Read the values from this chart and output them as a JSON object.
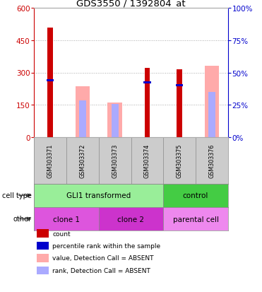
{
  "title": "GDS3550 / 1392804_at",
  "samples": [
    "GSM303371",
    "GSM303372",
    "GSM303373",
    "GSM303374",
    "GSM303375",
    "GSM303376"
  ],
  "red_counts": [
    510,
    0,
    0,
    320,
    315,
    0
  ],
  "pink_values": [
    0,
    235,
    160,
    0,
    0,
    330
  ],
  "light_blue_ranks": [
    0,
    170,
    155,
    0,
    0,
    210
  ],
  "blue_percentile": [
    265,
    0,
    0,
    255,
    240,
    0
  ],
  "ylim_left": [
    0,
    600
  ],
  "ylim_right": [
    0,
    100
  ],
  "yticks_left": [
    0,
    150,
    300,
    450,
    600
  ],
  "yticks_right": [
    0,
    25,
    50,
    75,
    100
  ],
  "left_axis_color": "#cc0000",
  "right_axis_color": "#0000cc",
  "cell_type_groups": [
    {
      "label": "GLI1 transformed",
      "span": [
        0,
        4
      ],
      "color": "#99ee99"
    },
    {
      "label": "control",
      "span": [
        4,
        6
      ],
      "color": "#44cc44"
    }
  ],
  "other_groups": [
    {
      "label": "clone 1",
      "span": [
        0,
        2
      ],
      "color": "#dd55dd"
    },
    {
      "label": "clone 2",
      "span": [
        2,
        4
      ],
      "color": "#cc33cc"
    },
    {
      "label": "parental cell",
      "span": [
        4,
        6
      ],
      "color": "#ee88ee"
    }
  ],
  "legend_items": [
    {
      "label": "count",
      "color": "#cc0000"
    },
    {
      "label": "percentile rank within the sample",
      "color": "#0000cc"
    },
    {
      "label": "value, Detection Call = ABSENT",
      "color": "#ffaaaa"
    },
    {
      "label": "rank, Detection Call = ABSENT",
      "color": "#aaaaff"
    }
  ],
  "grid_color": "#aaaaaa",
  "bg_color": "#ffffff",
  "sample_bg_color": "#cccccc"
}
